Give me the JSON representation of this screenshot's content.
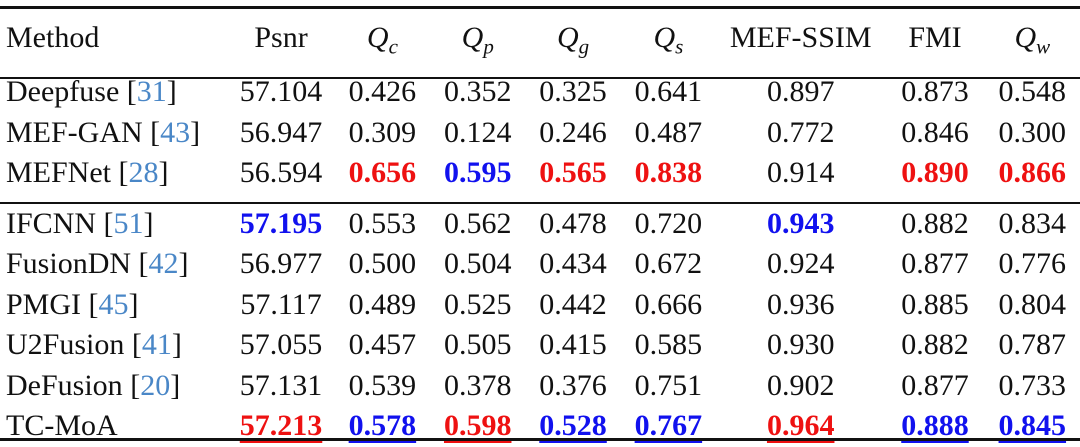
{
  "headers": {
    "method": "Method",
    "psnr": "Psnr",
    "qc": {
      "base": "Q",
      "sub": "c"
    },
    "qp": {
      "base": "Q",
      "sub": "p"
    },
    "qg": {
      "base": "Q",
      "sub": "g"
    },
    "qs": {
      "base": "Q",
      "sub": "s"
    },
    "mefssim": "MEF-SSIM",
    "fmi": "FMI",
    "qw": {
      "base": "Q",
      "sub": "w"
    }
  },
  "colors": {
    "best": "#ee1111",
    "second": "#1111ee",
    "reference": "#4a87c7"
  },
  "group1": [
    {
      "name": "Deepfuse",
      "ref": "31",
      "psnr": "57.104",
      "qc": "0.426",
      "qp": "0.352",
      "qg": "0.325",
      "qs": "0.641",
      "mefssim": "0.897",
      "fmi": "0.873",
      "qw": "0.548"
    },
    {
      "name": "MEF-GAN",
      "ref": "43",
      "psnr": "56.947",
      "qc": "0.309",
      "qp": "0.124",
      "qg": "0.246",
      "qs": "0.487",
      "mefssim": "0.772",
      "fmi": "0.846",
      "qw": "0.300"
    },
    {
      "name": "MEFNet",
      "ref": "28",
      "psnr": "56.594",
      "qc": "0.656",
      "qp": "0.595",
      "qg": "0.565",
      "qs": "0.838",
      "mefssim": "0.914",
      "fmi": "0.890",
      "qw": "0.866"
    }
  ],
  "group2": [
    {
      "name": "IFCNN",
      "ref": "51",
      "psnr": "57.195",
      "qc": "0.553",
      "qp": "0.562",
      "qg": "0.478",
      "qs": "0.720",
      "mefssim": "0.943",
      "fmi": "0.882",
      "qw": "0.834"
    },
    {
      "name": "FusionDN",
      "ref": "42",
      "psnr": "56.977",
      "qc": "0.500",
      "qp": "0.504",
      "qg": "0.434",
      "qs": "0.672",
      "mefssim": "0.924",
      "fmi": "0.877",
      "qw": "0.776"
    },
    {
      "name": "PMGI",
      "ref": "45",
      "psnr": "57.117",
      "qc": "0.489",
      "qp": "0.525",
      "qg": "0.442",
      "qs": "0.666",
      "mefssim": "0.936",
      "fmi": "0.885",
      "qw": "0.804"
    },
    {
      "name": "U2Fusion",
      "ref": "41",
      "psnr": "57.055",
      "qc": "0.457",
      "qp": "0.505",
      "qg": "0.415",
      "qs": "0.585",
      "mefssim": "0.930",
      "fmi": "0.882",
      "qw": "0.787"
    },
    {
      "name": "DeFusion",
      "ref": "20",
      "psnr": "57.131",
      "qc": "0.539",
      "qp": "0.378",
      "qg": "0.376",
      "qs": "0.751",
      "mefssim": "0.902",
      "fmi": "0.877",
      "qw": "0.733"
    },
    {
      "name": "TC-MoA",
      "ref": "",
      "psnr": "57.213",
      "qc": "0.578",
      "qp": "0.598",
      "qg": "0.528",
      "qs": "0.767",
      "mefssim": "0.964",
      "fmi": "0.888",
      "qw": "0.845"
    }
  ]
}
